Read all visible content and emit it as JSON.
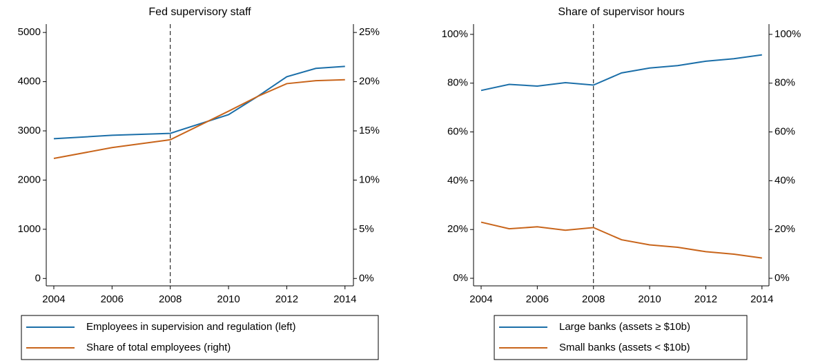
{
  "chart_data": [
    {
      "type": "line",
      "title": "Fed supervisory staff",
      "x": [
        2004,
        2006,
        2008,
        2010,
        2011,
        2012,
        2013,
        2014
      ],
      "series": [
        {
          "name": "Employees in supervision and regulation (left)",
          "color": "#1a6ea8",
          "values": [
            2840,
            2910,
            2950,
            3330,
            3700,
            4100,
            4270,
            4310
          ]
        },
        {
          "name": "Share of total employees (right)",
          "color": "#c8641a",
          "axis": "y2",
          "values": [
            12.2,
            13.3,
            14.1,
            17.0,
            18.5,
            19.8,
            20.1,
            20.2
          ]
        }
      ],
      "xlim": [
        2003.74,
        2014.29
      ],
      "xticks": [
        2004,
        2006,
        2008,
        2010,
        2012,
        2014
      ],
      "ylim": [
        -150,
        5170
      ],
      "yticks": [
        0,
        1000,
        2000,
        3000,
        4000,
        5000
      ],
      "y2lim": [
        -0.75,
        25.85
      ],
      "y2ticks": [
        {
          "value": 0,
          "label": "0%"
        },
        {
          "value": 5,
          "label": "5%"
        },
        {
          "value": 10,
          "label": "10%"
        },
        {
          "value": 15,
          "label": "15%"
        },
        {
          "value": 20,
          "label": "20%"
        },
        {
          "value": 25,
          "label": "25%"
        }
      ],
      "vline": 2008,
      "legend": "bottom"
    },
    {
      "type": "line",
      "title": "Share of supervisor hours",
      "x": [
        2004,
        2005,
        2006,
        2007,
        2008,
        2009,
        2010,
        2011,
        2012,
        2013,
        2014
      ],
      "series": [
        {
          "name": "Large banks (assets ≥ $10b)",
          "color": "#1a6ea8",
          "values": [
            77,
            79.5,
            78.8,
            80.2,
            79.2,
            84.2,
            86.2,
            87.2,
            89,
            90,
            91.6
          ]
        },
        {
          "name": "Small banks (assets < $10b)",
          "color": "#c8641a",
          "values": [
            23,
            20.3,
            21.1,
            19.7,
            20.8,
            15.8,
            13.7,
            12.7,
            10.9,
            9.9,
            8.3
          ]
        }
      ],
      "xlim": [
        2003.73,
        2014.25
      ],
      "xticks": [
        2004,
        2006,
        2008,
        2010,
        2012,
        2014
      ],
      "ylim": [
        -3.1,
        104.2
      ],
      "yticks": [
        {
          "value": 0,
          "label": "0%"
        },
        {
          "value": 20,
          "label": "20%"
        },
        {
          "value": 40,
          "label": "40%"
        },
        {
          "value": 60,
          "label": "60%"
        },
        {
          "value": 80,
          "label": "80%"
        },
        {
          "value": 100,
          "label": "100%"
        }
      ],
      "y2lim": [
        -3.1,
        104.2
      ],
      "y2ticks": [
        {
          "value": 0,
          "label": "0%"
        },
        {
          "value": 20,
          "label": "20%"
        },
        {
          "value": 40,
          "label": "40%"
        },
        {
          "value": 60,
          "label": "60%"
        },
        {
          "value": 80,
          "label": "80%"
        },
        {
          "value": 100,
          "label": "100%"
        }
      ],
      "vline": 2008,
      "legend": "bottom"
    }
  ]
}
